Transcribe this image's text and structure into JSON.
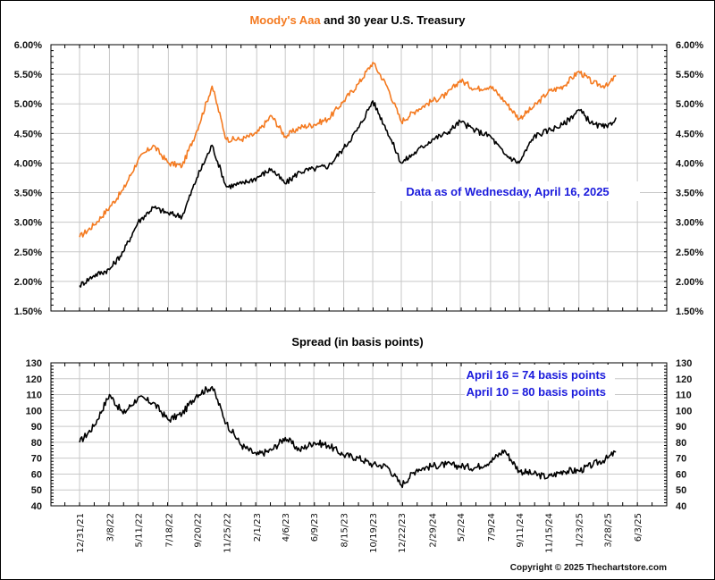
{
  "colors": {
    "aaa": "#f47a20",
    "treasury": "#000000",
    "spread": "#000000",
    "note": "#1a1adc",
    "grid": "#c8c8c8"
  },
  "chart_data": [
    {
      "type": "line",
      "title_parts": [
        {
          "text": "Moody's Aaa",
          "color": "#f47a20"
        },
        {
          "text": " and 30 year U.S. Treasury",
          "color": "#000000"
        }
      ],
      "xlabel": "",
      "ylabel": "",
      "ylim": [
        1.5,
        6.0
      ],
      "yticks": [
        "6.00%",
        "5.50%",
        "5.00%",
        "4.50%",
        "4.00%",
        "3.50%",
        "3.00%",
        "2.50%",
        "2.00%",
        "1.50%"
      ],
      "ytick_values": [
        6.0,
        5.5,
        5.0,
        4.5,
        4.0,
        3.5,
        3.0,
        2.5,
        2.0,
        1.5
      ],
      "y_axis_sides": [
        "left",
        "right"
      ],
      "grid": true,
      "annotation": "Data as of Wednesday, April 16, 2025",
      "x_dates": [
        "12/31/21",
        "2/1/22",
        "3/8/22",
        "4/8/22",
        "5/11/22",
        "6/14/22",
        "7/18/22",
        "8/18/22",
        "9/20/22",
        "10/24/22",
        "11/25/22",
        "12/29/22",
        "2/1/23",
        "3/6/23",
        "4/6/23",
        "5/8/23",
        "6/9/23",
        "7/12/23",
        "8/15/23",
        "9/18/23",
        "10/19/23",
        "11/20/23",
        "12/22/23",
        "1/26/24",
        "2/29/24",
        "4/1/24",
        "5/2/24",
        "6/5/24",
        "7/9/24",
        "8/9/24",
        "9/11/24",
        "10/14/24",
        "11/15/24",
        "12/19/24",
        "1/23/25",
        "2/24/25",
        "3/28/25",
        "4/16/25"
      ],
      "series": [
        {
          "name": "Moody's Aaa",
          "color": "#f47a20",
          "values": [
            2.75,
            2.95,
            3.25,
            3.55,
            4.05,
            4.3,
            4.0,
            3.95,
            4.55,
            5.3,
            4.4,
            4.4,
            4.5,
            4.8,
            4.45,
            4.6,
            4.65,
            4.75,
            5.05,
            5.35,
            5.7,
            5.3,
            4.7,
            4.9,
            5.05,
            5.15,
            5.4,
            5.25,
            5.3,
            5.05,
            4.75,
            4.95,
            5.2,
            5.3,
            5.55,
            5.35,
            5.3,
            5.48
          ]
        },
        {
          "name": "30 year U.S. Treasury",
          "color": "#000000",
          "values": [
            1.93,
            2.1,
            2.2,
            2.5,
            3.0,
            3.25,
            3.15,
            3.1,
            3.75,
            4.3,
            3.6,
            3.65,
            3.75,
            3.9,
            3.65,
            3.85,
            3.9,
            3.95,
            4.25,
            4.6,
            5.05,
            4.55,
            4.0,
            4.2,
            4.4,
            4.5,
            4.7,
            4.55,
            4.45,
            4.15,
            4.0,
            4.45,
            4.55,
            4.65,
            4.9,
            4.65,
            4.6,
            4.77
          ]
        }
      ]
    },
    {
      "type": "line",
      "title": "Spread (in basis points)",
      "xlabel": "",
      "ylabel": "",
      "ylim": [
        40,
        130
      ],
      "yticks": [
        "130",
        "120",
        "110",
        "100",
        "90",
        "80",
        "70",
        "60",
        "50",
        "40"
      ],
      "ytick_values": [
        130,
        120,
        110,
        100,
        90,
        80,
        70,
        60,
        50,
        40
      ],
      "y_axis_sides": [
        "left",
        "right"
      ],
      "grid": true,
      "annotations": [
        "April 16 = 74 basis points",
        "April 10 = 80 basis points"
      ],
      "x_tick_labels": [
        "12/31/21",
        "3/8/22",
        "5/11/22",
        "7/18/22",
        "9/20/22",
        "11/25/22",
        "2/1/23",
        "4/6/23",
        "6/9/23",
        "8/15/23",
        "10/19/23",
        "12/22/23",
        "2/29/24",
        "5/2/24",
        "7/9/24",
        "9/11/24",
        "11/15/24",
        "1/23/25",
        "3/28/25",
        "6/3/25"
      ],
      "x_dates": [
        "12/31/21",
        "2/1/22",
        "3/8/22",
        "4/8/22",
        "5/11/22",
        "6/14/22",
        "7/18/22",
        "8/18/22",
        "9/20/22",
        "10/24/22",
        "11/25/22",
        "12/29/22",
        "2/1/23",
        "3/6/23",
        "4/6/23",
        "5/8/23",
        "6/9/23",
        "7/12/23",
        "8/15/23",
        "9/18/23",
        "10/19/23",
        "11/20/23",
        "12/22/23",
        "1/26/24",
        "2/29/24",
        "4/1/24",
        "5/2/24",
        "6/5/24",
        "7/9/24",
        "8/9/24",
        "9/11/24",
        "10/14/24",
        "11/15/24",
        "12/19/24",
        "1/23/25",
        "2/24/25",
        "3/28/25",
        "4/16/25"
      ],
      "series": [
        {
          "name": "Spread",
          "color": "#000000",
          "values": [
            80,
            90,
            110,
            98,
            108,
            105,
            94,
            98,
            110,
            115,
            92,
            78,
            72,
            75,
            83,
            75,
            80,
            78,
            72,
            70,
            66,
            65,
            53,
            63,
            65,
            66,
            65,
            64,
            68,
            75,
            62,
            60,
            58,
            62,
            62,
            66,
            70,
            74
          ]
        }
      ]
    }
  ],
  "footer": {
    "copyright": "Copyright © 2025 Thechartstore.com"
  }
}
